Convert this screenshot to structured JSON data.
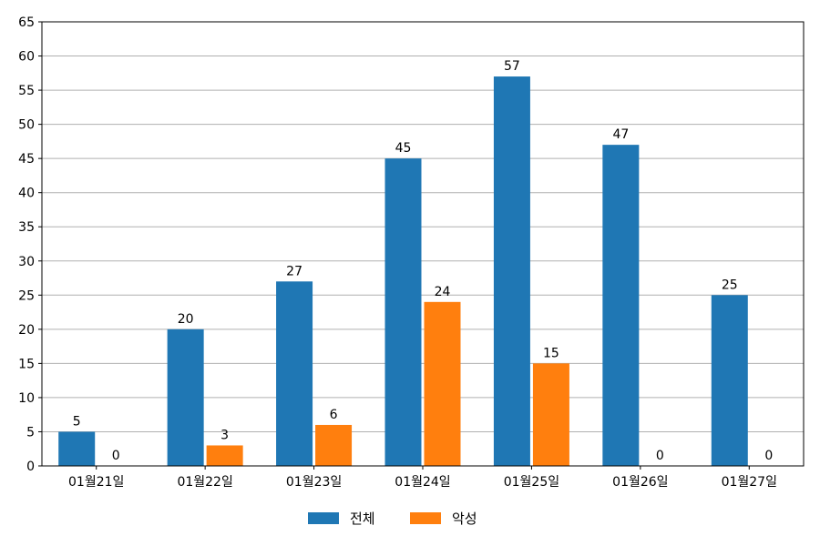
{
  "chart_data": {
    "type": "bar",
    "categories": [
      "01월21일",
      "01월22일",
      "01월23일",
      "01월24일",
      "01월25일",
      "01월26일",
      "01월27일"
    ],
    "series": [
      {
        "name": "전체",
        "color": "#1f77b4",
        "values": [
          5,
          20,
          27,
          45,
          57,
          47,
          25
        ]
      },
      {
        "name": "악성",
        "color": "#ff7f0e",
        "values": [
          0,
          3,
          6,
          24,
          15,
          0,
          0
        ]
      }
    ],
    "ylim": [
      0,
      65
    ],
    "yticks": [
      0,
      5,
      10,
      15,
      20,
      25,
      30,
      35,
      40,
      45,
      50,
      55,
      60,
      65
    ],
    "grid": "horizontal",
    "legend_position": "bottom-center",
    "data_labels": true
  }
}
